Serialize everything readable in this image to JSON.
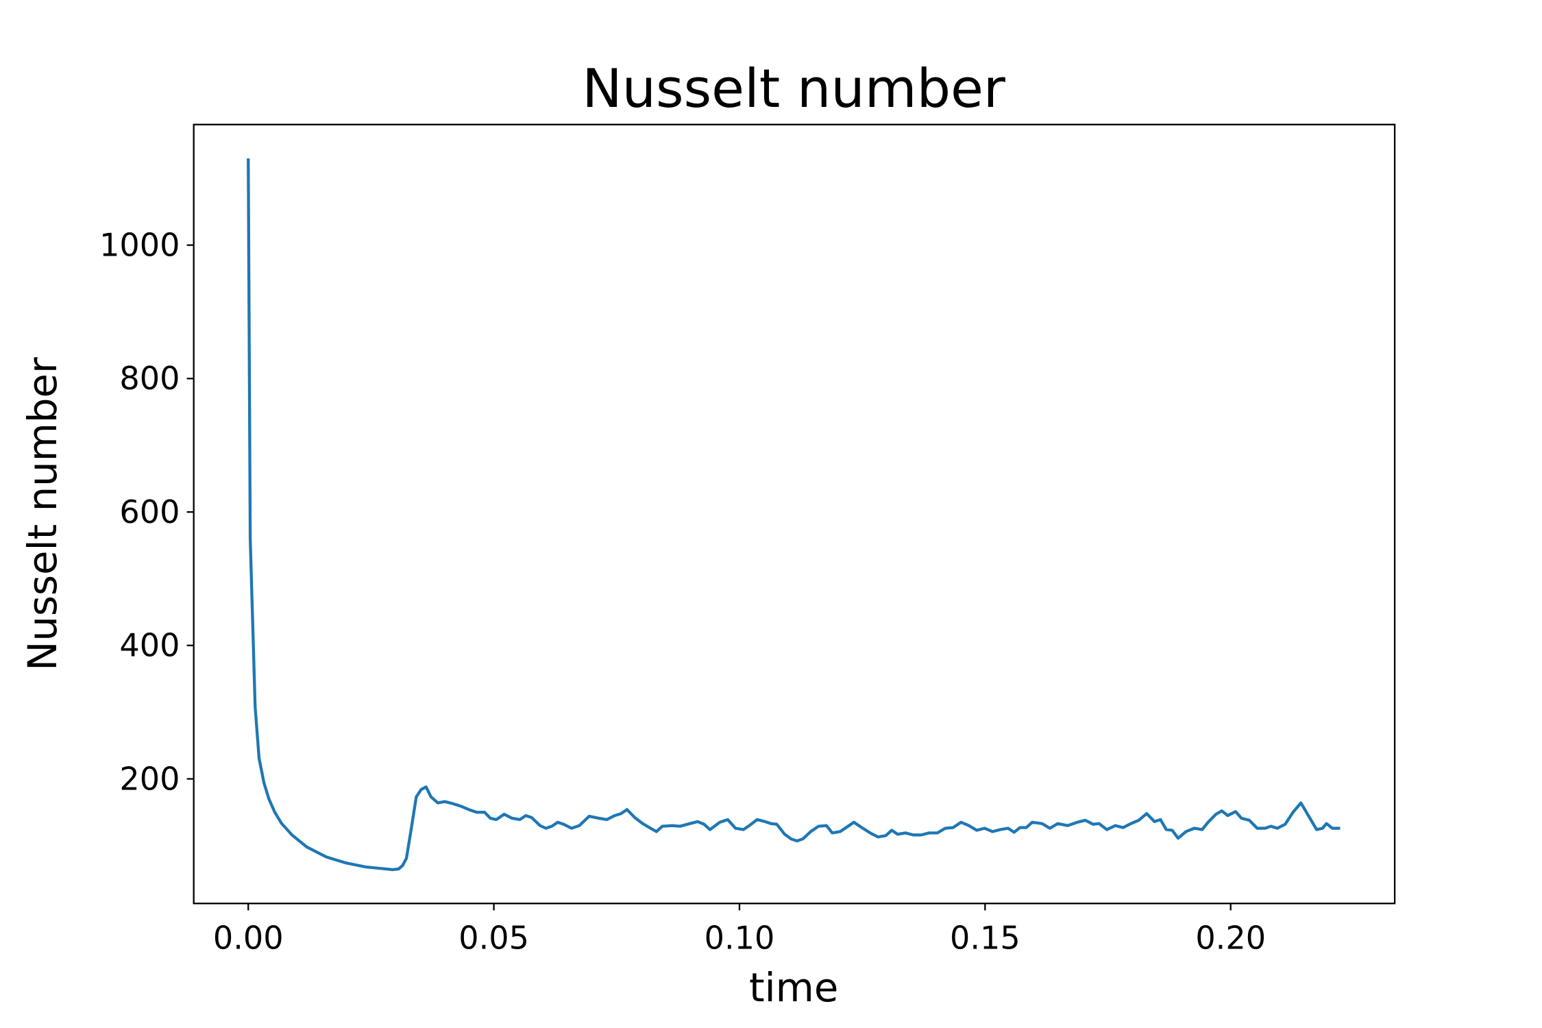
{
  "chart_data": {
    "type": "line",
    "title": "Nusselt number",
    "xlabel": "time",
    "ylabel": "Nusselt number",
    "color": "#1f77b4",
    "grid": false,
    "xlim": [
      -0.0111,
      0.2334
    ],
    "ylim": [
      13.3,
      1180.7
    ],
    "xticks": [
      {
        "value": 0,
        "label": "0.00"
      },
      0.05,
      {
        "value": 0.1,
        "label": "0.10"
      },
      0.15,
      {
        "value": 0.2,
        "label": "0.20"
      }
    ],
    "yticks": [
      200,
      400,
      600,
      800,
      1000
    ],
    "x": [
      0,
      0.0004,
      0.0014,
      0.0022,
      0.0032,
      0.0042,
      0.0054,
      0.0068,
      0.0089,
      0.0119,
      0.0159,
      0.0199,
      0.0239,
      0.0294,
      0.0306,
      0.0314,
      0.0322,
      0.0332,
      0.0342,
      0.0352,
      0.0362,
      0.0372,
      0.0386,
      0.04,
      0.0416,
      0.0433,
      0.0449,
      0.0465,
      0.0481,
      0.0493,
      0.0505,
      0.0521,
      0.0537,
      0.0553,
      0.0565,
      0.0577,
      0.0594,
      0.0606,
      0.0618,
      0.063,
      0.0642,
      0.0658,
      0.0674,
      0.0694,
      0.0714,
      0.073,
      0.0746,
      0.0759,
      0.0771,
      0.0787,
      0.0803,
      0.0819,
      0.0831,
      0.0843,
      0.0863,
      0.0879,
      0.0899,
      0.0915,
      0.0928,
      0.094,
      0.096,
      0.0976,
      0.0992,
      0.1008,
      0.102,
      0.1036,
      0.1052,
      0.1064,
      0.1076,
      0.1092,
      0.1105,
      0.1117,
      0.1129,
      0.1145,
      0.1161,
      0.1177,
      0.1189,
      0.1205,
      0.1217,
      0.1233,
      0.1249,
      0.1266,
      0.1282,
      0.1298,
      0.131,
      0.1322,
      0.1338,
      0.1354,
      0.137,
      0.1386,
      0.1403,
      0.1419,
      0.1435,
      0.1451,
      0.1467,
      0.1483,
      0.1499,
      0.1515,
      0.1531,
      0.1547,
      0.1559,
      0.1571,
      0.1584,
      0.1596,
      0.1616,
      0.1632,
      0.1648,
      0.1668,
      0.1688,
      0.1704,
      0.172,
      0.1732,
      0.1748,
      0.1765,
      0.1781,
      0.1797,
      0.1813,
      0.1829,
      0.1845,
      0.1857,
      0.1869,
      0.1881,
      0.1893,
      0.1909,
      0.1926,
      0.1942,
      0.1954,
      0.197,
      0.1982,
      0.1994,
      0.201,
      0.2022,
      0.2038,
      0.2054,
      0.207,
      0.2082,
      0.2095,
      0.2111,
      0.2127,
      0.2143,
      0.2159,
      0.2175,
      0.2187,
      0.2195,
      0.2207,
      0.2223
    ],
    "values": [
      1130,
      560,
      308,
      231,
      194,
      170,
      150,
      133,
      116,
      98,
      83,
      74,
      68,
      64,
      65,
      70,
      81,
      126,
      173,
      184,
      188,
      173,
      164,
      166,
      163,
      159,
      154,
      150,
      150,
      141,
      139,
      147,
      141,
      139,
      145,
      142,
      130,
      126,
      129,
      135,
      132,
      126,
      130,
      144,
      141,
      139,
      145,
      148,
      154,
      142,
      133,
      126,
      121,
      129,
      130,
      129,
      133,
      136,
      132,
      124,
      135,
      139,
      126,
      124,
      130,
      139,
      136,
      133,
      132,
      117,
      110,
      107,
      110,
      121,
      129,
      130,
      119,
      121,
      127,
      135,
      127,
      119,
      113,
      115,
      123,
      117,
      119,
      116,
      116,
      119,
      119,
      126,
      127,
      135,
      130,
      123,
      126,
      121,
      124,
      126,
      120,
      127,
      127,
      135,
      133,
      126,
      133,
      130,
      135,
      138,
      132,
      133,
      124,
      130,
      127,
      133,
      138,
      148,
      136,
      139,
      124,
      123,
      111,
      121,
      126,
      124,
      135,
      147,
      152,
      145,
      151,
      141,
      138,
      126,
      126,
      129,
      126,
      132,
      150,
      164,
      144,
      124,
      126,
      133,
      126,
      126
    ]
  }
}
